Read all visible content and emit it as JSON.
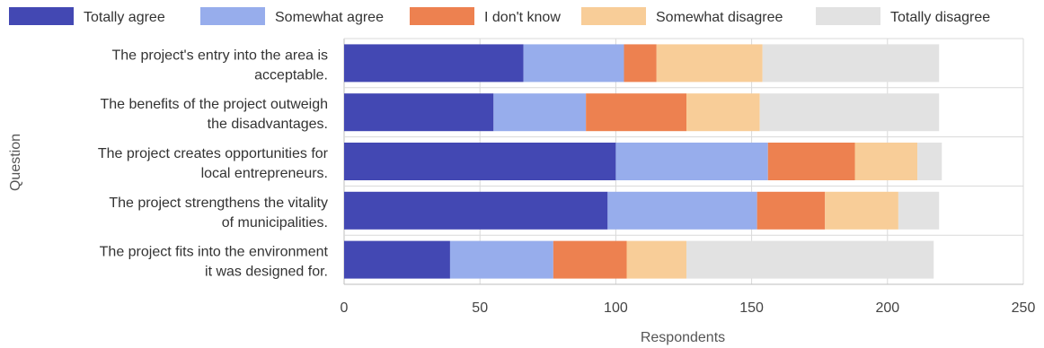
{
  "chart_data": {
    "type": "bar",
    "orientation": "horizontal",
    "stacked": true,
    "categories": [
      "The project's entry into the area is acceptable.",
      "The benefits of the project outweigh the disadvantages.",
      "The project creates opportunities for local entrepreneurs.",
      "The project strengthens the vitality of municipalities.",
      "The project fits into the environment it was designed for."
    ],
    "category_lines": [
      [
        "The project's entry into the area is",
        "acceptable."
      ],
      [
        "The benefits of the project outweigh",
        "the disadvantages."
      ],
      [
        "The project creates opportunities for",
        "local entrepreneurs."
      ],
      [
        "The project strengthens the vitality",
        "of municipalities."
      ],
      [
        "The project fits into the environment",
        "it was designed for."
      ]
    ],
    "series": [
      {
        "name": "Totally agree",
        "color": "#4348b3",
        "values": [
          66,
          55,
          100,
          97,
          39
        ]
      },
      {
        "name": "Somewhat agree",
        "color": "#97adec",
        "values": [
          37,
          34,
          56,
          55,
          38
        ]
      },
      {
        "name": "I don't know",
        "color": "#ed8150",
        "values": [
          12,
          37,
          32,
          25,
          27
        ]
      },
      {
        "name": "Somewhat disagree",
        "color": "#f8cd98",
        "values": [
          39,
          27,
          23,
          27,
          22
        ]
      },
      {
        "name": "Totally disagree",
        "color": "#e2e2e2",
        "values": [
          65,
          66,
          9,
          15,
          91
        ]
      }
    ],
    "xlabel": "Respondents",
    "ylabel": "Question",
    "xlim": [
      0,
      250
    ],
    "xticks": [
      0,
      50,
      100,
      150,
      200,
      250
    ],
    "grid": true,
    "legend_position": "top"
  }
}
